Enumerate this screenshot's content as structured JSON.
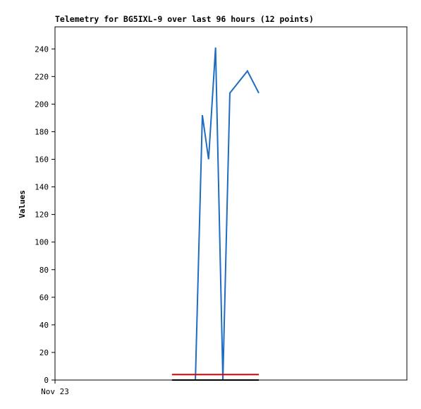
{
  "chart_data": {
    "type": "line",
    "title": "Telemetry for BG5IXL-9 over last 96 hours (12 points)",
    "y_label": "Values",
    "xlim": [
      0,
      96
    ],
    "xticks": [
      {
        "value": 0,
        "label": "Nov 23"
      }
    ],
    "ylim": [
      0,
      256
    ],
    "yticks": [
      0,
      20,
      40,
      60,
      80,
      100,
      120,
      140,
      160,
      180,
      200,
      220,
      240
    ],
    "grid": false,
    "series": [
      {
        "color": "#1f6cc0",
        "x": [
          38.3,
          40.2,
          41.9,
          43.8,
          45.8,
          47.7,
          52.5,
          55.6
        ],
        "values": [
          0,
          192,
          160,
          241,
          0,
          208,
          224,
          208
        ]
      },
      {
        "color": "#e00000",
        "x": [
          31.9,
          55.6
        ],
        "values": [
          4,
          4
        ]
      },
      {
        "color": "#000000",
        "x": [
          31.9,
          55.6
        ],
        "values": [
          0,
          0
        ]
      }
    ]
  }
}
